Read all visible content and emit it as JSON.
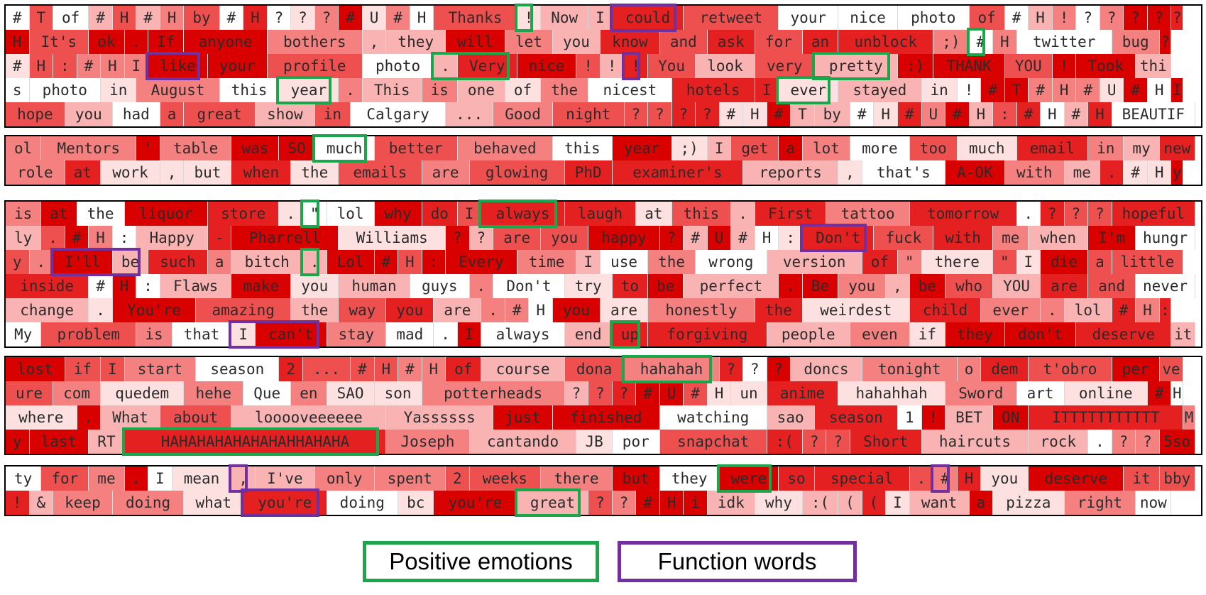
{
  "colors": {
    "positive": "#1aa64a",
    "function": "#7030a0"
  },
  "legend": {
    "positive": "Positive emotions",
    "function": "Function words"
  },
  "panels": [
    {
      "rows": [
        "# T of # H # H by # H ? ? ? # U # H Thanks ! Now I could retweet your nice photo of # H ! ? ? ? ? ?",
        "H It's ok . If anyone bothers , they will let you know and ask for an unblock ;) # H twitter bug ?",
        "# H : # H I like your profile photo . Very nice ! ! ! You look very pretty :) THANK YOU ! Took thi",
        "s photo in August this year . This is one of the nicest hotels I ever stayed in ! # T # H # U # H I",
        "hope you had a great show in Calgary ... Good night ? ? ? ? # H # T by # H # U # H : # H # H BEAUTIF"
      ],
      "highlights": [
        {
          "r": 0,
          "w": 18,
          "t": "p"
        },
        {
          "r": 0,
          "w": 21,
          "t": "f"
        },
        {
          "r": 1,
          "w": 19,
          "t": "p"
        },
        {
          "r": 2,
          "w": 6,
          "t": "f"
        },
        {
          "r": 2,
          "w": 10,
          "t": "p",
          "s": 2
        },
        {
          "r": 2,
          "w": 15,
          "t": "f"
        },
        {
          "r": 2,
          "w": 19,
          "t": "p"
        },
        {
          "r": 3,
          "w": 15,
          "t": "p"
        },
        {
          "r": 3,
          "w": 5,
          "t": "p"
        }
      ]
    },
    {
      "rows": [
        "ol Mentors ' table was SO much better behaved this year ;) I get a lot more too much email in my new",
        "role at work , but when the emails are glowing PhD examiner's reports , that's A-OK with me . # H y"
      ],
      "highlights": [
        {
          "r": 0,
          "w": 6,
          "t": "p"
        }
      ]
    },
    {
      "rows": [
        "is at the liquor store . \" lol why do I always laugh at this . First tattoo tomorrow . ? ? ? hopeful",
        "ly . # H : Happy - Pharrell Williams ? ? are you happy ? # U # H : Don't fuck with me when I'm hungr",
        "y . I'll be such a bitch . Lol # H : Every time I use the wrong version of \" there \" I die a little",
        "inside # H : Flaws make you human guys . Don't try to be perfect . Be you , be who YOU are and never",
        "change . You're amazing the way you are . # H you are honestly the weirdest child ever . lol # H :",
        "My problem is that I can't stay mad . I always end up forgiving people even if they don't deserve it"
      ],
      "highlights": [
        {
          "r": 0,
          "w": 6,
          "t": "p"
        },
        {
          "r": 0,
          "w": 11,
          "t": "p"
        },
        {
          "r": 1,
          "w": 20,
          "t": "f"
        },
        {
          "r": 2,
          "w": 2,
          "t": "f",
          "s": 2
        },
        {
          "r": 2,
          "w": 7,
          "t": "p"
        },
        {
          "r": 5,
          "w": 4,
          "t": "f",
          "s": 2
        },
        {
          "r": 5,
          "w": 12,
          "t": "p"
        }
      ]
    },
    {
      "rows": [
        "lost if I start season 2 ... # H # H of course dona hahahah ? ? ? doncs tonight o dem t'obro per ve",
        "ure com quedem hehe Que en SAO son potterheads ? ? ? # U # H un anime hahahhah Sword art online # H",
        "where . What about looooveeeeee Yassssss just finished watching sao season 1 ! BET ON ITTTTTTTTTTT M",
        "y last RT HAHAHAHAHAHAHAHHAHAHA Joseph cantando JB por snapchat :( ? ? Short haircuts rock . ? ? 5so"
      ],
      "highlights": [
        {
          "r": 0,
          "w": 14,
          "t": "p"
        },
        {
          "r": 3,
          "w": 3,
          "t": "p"
        }
      ]
    },
    {
      "rows": [
        "ty for me . I mean , I've only spent 2 weeks there but they were so special . # H you deserve it bby",
        "! & keep doing what you're doing bc you're great ? ? # H i idk why :( ( ( I want a pizza right now"
      ],
      "highlights": [
        {
          "r": 0,
          "w": 6,
          "t": "f"
        },
        {
          "r": 0,
          "w": 15,
          "t": "p"
        },
        {
          "r": 0,
          "w": 19,
          "t": "f"
        },
        {
          "r": 1,
          "w": 5,
          "t": "f"
        },
        {
          "r": 1,
          "w": 9,
          "t": "p"
        }
      ]
    }
  ]
}
